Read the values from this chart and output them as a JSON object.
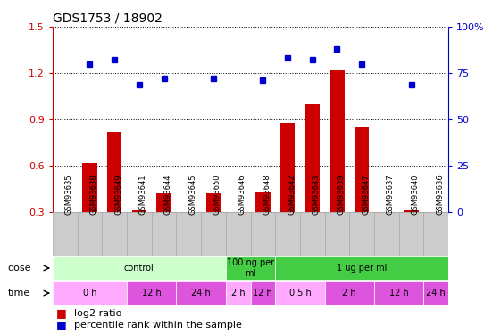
{
  "title": "GDS1753 / 18902",
  "samples": [
    "GSM93635",
    "GSM93638",
    "GSM93649",
    "GSM93641",
    "GSM93644",
    "GSM93645",
    "GSM93650",
    "GSM93646",
    "GSM93648",
    "GSM93642",
    "GSM93643",
    "GSM93639",
    "GSM93647",
    "GSM93637",
    "GSM93640",
    "GSM93636"
  ],
  "log2_ratio": [
    0.0,
    0.62,
    0.82,
    0.31,
    0.42,
    0.0,
    0.42,
    0.0,
    0.43,
    0.88,
    1.0,
    1.22,
    0.85,
    0.0,
    0.31,
    0.0
  ],
  "percentile": [
    0.0,
    80.0,
    82.0,
    69.0,
    72.0,
    0.0,
    72.0,
    0.0,
    71.0,
    83.0,
    82.0,
    88.0,
    80.0,
    0.0,
    69.0,
    0.0
  ],
  "ylim_left": [
    0.3,
    1.5
  ],
  "ylim_right": [
    0,
    100
  ],
  "yticks_left": [
    0.3,
    0.6,
    0.9,
    1.2,
    1.5
  ],
  "yticks_right": [
    0,
    25,
    50,
    75,
    100
  ],
  "bar_color": "#cc0000",
  "dot_color": "#0000cc",
  "dose_groups": [
    {
      "label": "control",
      "start": 0,
      "end": 7,
      "color": "#ccffcc"
    },
    {
      "label": "100 ng per\nml",
      "start": 7,
      "end": 9,
      "color": "#44cc44"
    },
    {
      "label": "1 ug per ml",
      "start": 9,
      "end": 16,
      "color": "#44cc44"
    }
  ],
  "time_groups": [
    {
      "label": "0 h",
      "start": 0,
      "end": 3,
      "color": "#ffaaff"
    },
    {
      "label": "12 h",
      "start": 3,
      "end": 5,
      "color": "#dd55dd"
    },
    {
      "label": "24 h",
      "start": 5,
      "end": 7,
      "color": "#dd55dd"
    },
    {
      "label": "2 h",
      "start": 7,
      "end": 8,
      "color": "#ffaaff"
    },
    {
      "label": "12 h",
      "start": 8,
      "end": 9,
      "color": "#dd55dd"
    },
    {
      "label": "0.5 h",
      "start": 9,
      "end": 11,
      "color": "#ffaaff"
    },
    {
      "label": "2 h",
      "start": 11,
      "end": 13,
      "color": "#dd55dd"
    },
    {
      "label": "12 h",
      "start": 13,
      "end": 15,
      "color": "#dd55dd"
    },
    {
      "label": "24 h",
      "start": 15,
      "end": 16,
      "color": "#dd55dd"
    }
  ],
  "tick_color_left": "#cc0000",
  "tick_color_right": "#0000cc",
  "grid_color": "#000000",
  "label_bg_color": "#cccccc",
  "label_bg_edge": "#aaaaaa"
}
